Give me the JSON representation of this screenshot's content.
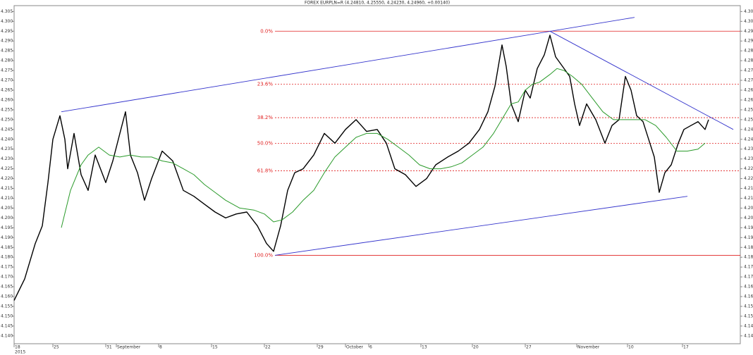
{
  "chart_data": {
    "type": "line",
    "title": "FOREX EURPLN=R (4.24810, 4.25550, 4.24230, 4.24960, +0.00140)",
    "x_year_label": "2015",
    "xlim": [
      0,
      103
    ],
    "ylim": [
      4.136,
      4.308
    ],
    "xticks": [
      {
        "value": 0,
        "label": "18"
      },
      {
        "value": 5.5,
        "label": "25"
      },
      {
        "value": 13,
        "label": "31"
      },
      {
        "value": 14.5,
        "label": "September"
      },
      {
        "value": 20.5,
        "label": "8"
      },
      {
        "value": 28,
        "label": "15"
      },
      {
        "value": 35.5,
        "label": "22"
      },
      {
        "value": 43,
        "label": "29"
      },
      {
        "value": 47,
        "label": "October"
      },
      {
        "value": 50.3,
        "label": "6"
      },
      {
        "value": 57.7,
        "label": "13"
      },
      {
        "value": 65,
        "label": "20"
      },
      {
        "value": 72.5,
        "label": "27"
      },
      {
        "value": 79.8,
        "label": "November"
      },
      {
        "value": 87,
        "label": "10"
      },
      {
        "value": 94.8,
        "label": "17"
      }
    ],
    "yticks": [
      {
        "value": 4.14,
        "label": "4.140"
      },
      4.145,
      {
        "value": 4.15,
        "label": "4.150"
      },
      4.155,
      {
        "value": 4.16,
        "label": "4.160"
      },
      4.165,
      {
        "value": 4.17,
        "label": "4.170"
      },
      4.175,
      {
        "value": 4.18,
        "label": "4.180"
      },
      4.185,
      {
        "value": 4.19,
        "label": "4.190"
      },
      4.195,
      {
        "value": 4.2,
        "label": "4.200"
      },
      4.205,
      {
        "value": 4.21,
        "label": "4.210"
      },
      4.215,
      {
        "value": 4.22,
        "label": "4.220"
      },
      4.225,
      {
        "value": 4.23,
        "label": "4.230"
      },
      4.235,
      {
        "value": 4.24,
        "label": "4.240"
      },
      4.245,
      {
        "value": 4.25,
        "label": "4.250"
      },
      4.255,
      {
        "value": 4.26,
        "label": "4.260"
      },
      4.265,
      {
        "value": 4.27,
        "label": "4.270"
      },
      4.275,
      {
        "value": 4.28,
        "label": "4.280"
      },
      4.285,
      {
        "value": 4.29,
        "label": "4.290"
      },
      4.295,
      {
        "value": 4.3,
        "label": "4.300"
      },
      4.305
    ],
    "grid": false,
    "series": [
      {
        "color": "#000000",
        "x": [
          0,
          1.5,
          3,
          4,
          4.8,
          5.5,
          6.5,
          7.2,
          7.6,
          8.5,
          9.5,
          10.5,
          11.5,
          13,
          14,
          15,
          15.8,
          16.5,
          17.5,
          18.5,
          19.5,
          21,
          22.5,
          24,
          25.5,
          27,
          28.5,
          30,
          31.5,
          33,
          34.5,
          35.8,
          36.8,
          37.8,
          38.8,
          39.8,
          41,
          42.5,
          44,
          45.5,
          47,
          48.5,
          50,
          51.5,
          52.8,
          54,
          55.5,
          57,
          58.5,
          59.8,
          61.5,
          63,
          64.5,
          66,
          67.2,
          68.2,
          69.2,
          69.8,
          70.5,
          71.5,
          72.5,
          73.2,
          74.2,
          75.2,
          76,
          76.8,
          77.8,
          78.8,
          79.5,
          80.2,
          81.2,
          82.5,
          83.8,
          84.8,
          85.8,
          86.7,
          87.5,
          88.3,
          89.2,
          90,
          90.8,
          91.5,
          92.3,
          93.2,
          94.2,
          95,
          96,
          97,
          98,
          98.5
        ],
        "values": [
          4.158,
          4.169,
          4.187,
          4.196,
          4.218,
          4.24,
          4.252,
          4.24,
          4.225,
          4.243,
          4.222,
          4.214,
          4.232,
          4.218,
          4.229,
          4.243,
          4.254,
          4.232,
          4.223,
          4.209,
          4.22,
          4.234,
          4.229,
          4.214,
          4.211,
          4.207,
          4.203,
          4.2,
          4.202,
          4.203,
          4.196,
          4.187,
          4.183,
          4.196,
          4.214,
          4.223,
          4.225,
          4.232,
          4.243,
          4.238,
          4.245,
          4.25,
          4.244,
          4.245,
          4.238,
          4.225,
          4.222,
          4.216,
          4.22,
          4.227,
          4.231,
          4.234,
          4.238,
          4.245,
          4.254,
          4.267,
          4.288,
          4.277,
          4.258,
          4.249,
          4.265,
          4.261,
          4.276,
          4.283,
          4.293,
          4.282,
          4.277,
          4.272,
          4.258,
          4.247,
          4.258,
          4.25,
          4.238,
          4.247,
          4.25,
          4.272,
          4.265,
          4.252,
          4.249,
          4.24,
          4.231,
          4.213,
          4.223,
          4.227,
          4.238,
          4.245,
          4.247,
          4.249,
          4.245,
          4.25
        ]
      },
      {
        "color": "#2a9a2a",
        "x": [
          6.7,
          8,
          9.5,
          10.5,
          12,
          13.5,
          15,
          16.5,
          18,
          19.5,
          21,
          22.5,
          24,
          25.5,
          27,
          28.5,
          30,
          32,
          34,
          35.5,
          36.8,
          38,
          39.5,
          41,
          42.5,
          44,
          45.5,
          47,
          48.5,
          50,
          51.5,
          53,
          54.5,
          56,
          57.5,
          59,
          60.5,
          62,
          63.5,
          65,
          66.5,
          68,
          69.5,
          70.5,
          71.5,
          72.5,
          73.5,
          74.5,
          76,
          77,
          78,
          79.2,
          80.5,
          82,
          83.5,
          85,
          86.5,
          88,
          89.5,
          91,
          92.5,
          94,
          95.5,
          97,
          98
        ],
        "values": [
          4.195,
          4.214,
          4.227,
          4.232,
          4.236,
          4.232,
          4.231,
          4.232,
          4.231,
          4.231,
          4.229,
          4.228,
          4.225,
          4.222,
          4.217,
          4.213,
          4.209,
          4.205,
          4.204,
          4.202,
          4.198,
          4.199,
          4.203,
          4.209,
          4.214,
          4.223,
          4.231,
          4.236,
          4.241,
          4.243,
          4.243,
          4.24,
          4.236,
          4.232,
          4.227,
          4.225,
          4.225,
          4.226,
          4.228,
          4.232,
          4.236,
          4.243,
          4.252,
          4.258,
          4.259,
          4.265,
          4.268,
          4.269,
          4.273,
          4.276,
          4.275,
          4.272,
          4.268,
          4.261,
          4.254,
          4.25,
          4.25,
          4.25,
          4.25,
          4.247,
          4.241,
          4.234,
          4.234,
          4.235,
          4.238
        ]
      }
    ],
    "fibonacci": {
      "color": "#e02020",
      "x_start": 37,
      "levels": [
        {
          "label": "0.0%",
          "value": 4.295,
          "style": "solid"
        },
        {
          "label": "23.6%",
          "value": 4.268,
          "style": "dashed"
        },
        {
          "label": "38.2%",
          "value": 4.251,
          "style": "dashed"
        },
        {
          "label": "50.0%",
          "value": 4.238,
          "style": "dashed"
        },
        {
          "label": "61.8%",
          "value": 4.224,
          "style": "dashed"
        },
        {
          "label": "100.0%",
          "value": 4.181,
          "style": "solid"
        }
      ]
    },
    "trendline_color": "#3333cc",
    "trendlines": [
      {
        "x": [
          6.7,
          88
        ],
        "values": [
          4.254,
          4.302
        ]
      },
      {
        "x": [
          37,
          95.5
        ],
        "values": [
          4.181,
          4.211
        ]
      },
      {
        "x": [
          76,
          102
        ],
        "values": [
          4.295,
          4.245
        ]
      }
    ]
  }
}
